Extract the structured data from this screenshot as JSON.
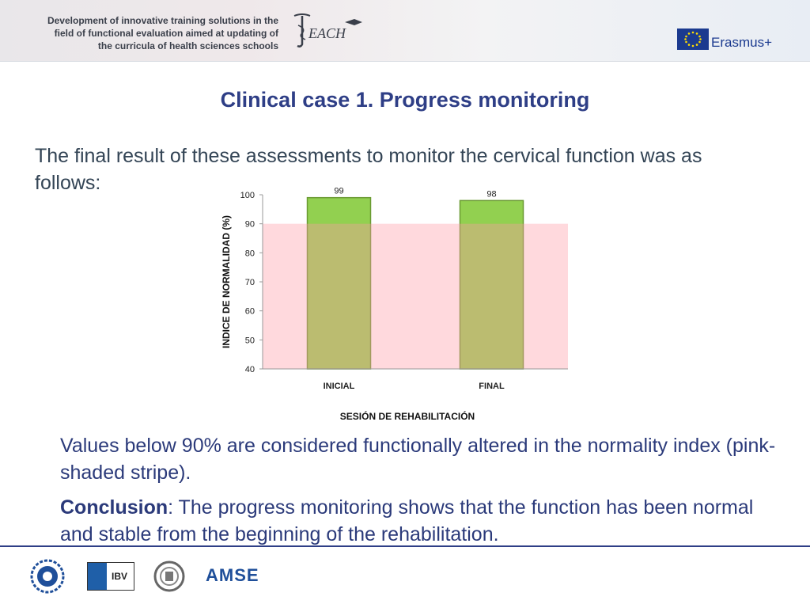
{
  "header": {
    "line1": "Development of innovative training solutions in the",
    "line2": "field of functional evaluation aimed at updating of",
    "line3": "the curricula of health sciences schools",
    "teach_logo_text": "EACH",
    "erasmus_label": "Erasmus+"
  },
  "title": "Clinical case 1. Progress monitoring",
  "intro_text": "The final result of these assessments to monitor the cervical function was as follows:",
  "chart_data": {
    "type": "bar",
    "categories": [
      "INICIAL",
      "FINAL"
    ],
    "values": [
      99,
      98
    ],
    "data_labels": [
      "99",
      "98"
    ],
    "ylabel": "INDICE DE NORMALIDAD (%)",
    "xlabel": "SESIÓN DE REHABILITACIÓN",
    "ylim": [
      40,
      100
    ],
    "yticks": [
      "40",
      "50",
      "60",
      "70",
      "80",
      "90",
      "100"
    ],
    "altered_threshold": 90,
    "colors": {
      "bar": "#92d050",
      "bar_overlap": "#9aab3a",
      "band": "#ffd5d8",
      "bar_border": "#6a9a32"
    }
  },
  "note_text": "Values below 90% are considered functionally altered in the normality index (pink-shaded stripe).",
  "conclusion": {
    "label": "Conclusion",
    "text": ": The progress monitoring shows that the function has been normal and stable from the beginning of the rehabilitation."
  },
  "footer": {
    "ibv_label": "IBV",
    "amse_label": "AMSE"
  },
  "colors": {
    "title": "#2e3e86",
    "accent": "#1b3a8f"
  }
}
